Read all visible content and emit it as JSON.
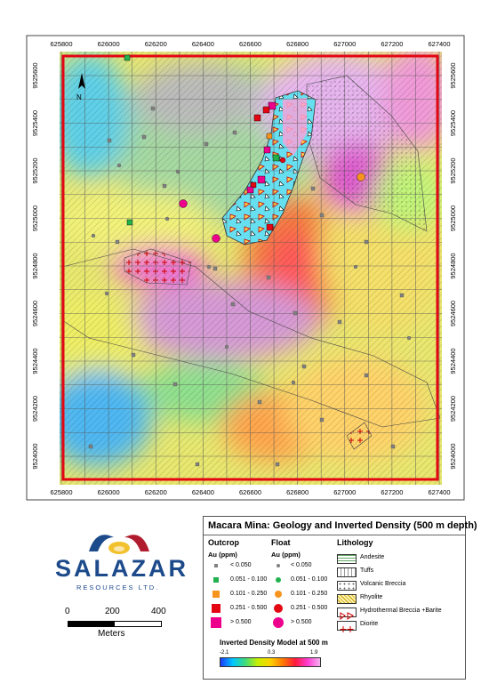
{
  "map": {
    "x_ticks": [
      "625800",
      "626000",
      "626200",
      "626400",
      "626600",
      "626800",
      "627000",
      "627200",
      "627400"
    ],
    "y_ticks": [
      "9525600",
      "9525400",
      "9525200",
      "9525000",
      "9524800",
      "9524600",
      "9524400",
      "9524200",
      "9524000"
    ],
    "north_label": "N"
  },
  "legend": {
    "title": "Macara Mina: Geology and Inverted Density (500 m depth)",
    "outcrop": {
      "heading": "Outcrop",
      "unit": "Au (ppm)"
    },
    "float": {
      "heading": "Float",
      "unit": "Au (ppm)"
    },
    "au_classes": [
      {
        "label": "< 0.050",
        "color": "#808080"
      },
      {
        "label": "0.051 - 0.100",
        "color": "#22b14c"
      },
      {
        "label": "0.101 - 0.250",
        "color": "#f7941d"
      },
      {
        "label": "0.251 - 0.500",
        "color": "#e30613"
      },
      {
        "label": "> 0.500",
        "color": "#ec008c"
      }
    ],
    "lithology": {
      "heading": "Lithology",
      "items": [
        {
          "label": "Andesite"
        },
        {
          "label": "Tuffs"
        },
        {
          "label": "Volcanic Breccia"
        },
        {
          "label": "Rhyolite"
        },
        {
          "label": "Hydrothermal Breccia +Barite"
        },
        {
          "label": "Diorite"
        }
      ]
    },
    "colorbar": {
      "title": "Inverted Density Model at 500 m",
      "min": "-2.1",
      "mid": "0.3",
      "max": "1.9"
    }
  },
  "logo": {
    "name": "SALAZAR",
    "sub": "RESOURCES LTD."
  },
  "scale": {
    "ticks": [
      "0",
      "200",
      "400"
    ],
    "unit": "Meters"
  }
}
